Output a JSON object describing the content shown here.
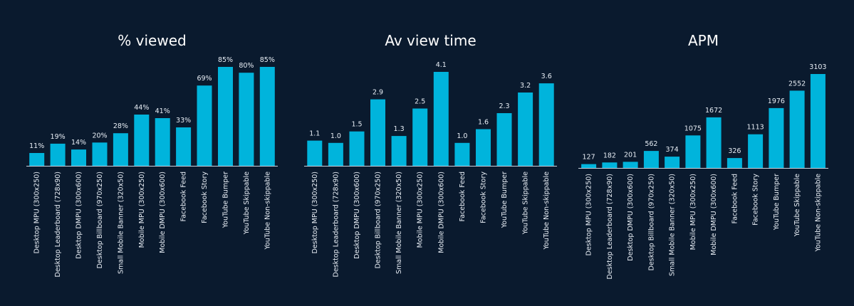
{
  "theme": {
    "background": "#0a1a2e",
    "bar_color": "#00b4dc",
    "axis_color": "#c9d3de",
    "text_color": "#ffffff"
  },
  "chart_data": [
    {
      "type": "bar",
      "title": "% viewed",
      "xlabel": "",
      "ylabel": "",
      "categories": [
        "Desktop MPU (300x250)",
        "Desktop Leaderboard (728x90)",
        "Desktop DMPU (300x600)",
        "Desktop Billboard (970x250)",
        "Small Mobile Banner (320x50)",
        "Mobile MPU (300x250)",
        "Mobile DMPU (300x600)",
        "Facebook Feed",
        "Facebook Story",
        "YouTube Bumper",
        "YouTube Skippable",
        "YouTube Non-skippable"
      ],
      "values": [
        11,
        19,
        14,
        20,
        28,
        44,
        41,
        33,
        69,
        85,
        80,
        85
      ],
      "labels": [
        "11%",
        "19%",
        "14%",
        "20%",
        "28%",
        "44%",
        "41%",
        "33%",
        "69%",
        "85%",
        "80%",
        "85%"
      ],
      "ylim": [
        0,
        85
      ],
      "grid": false
    },
    {
      "type": "bar",
      "title": "Av view time",
      "xlabel": "",
      "ylabel": "",
      "categories": [
        "Desktop MPU (300x250)",
        "Desktop Leaderboard (728x90)",
        "Desktop DMPU (300x600)",
        "Desktop Billboard (970x250)",
        "Small Mobile Banner (320x50)",
        "Mobile MPU (300x250)",
        "Mobile DMPU (300x600)",
        "Facebook Feed",
        "Facebook Story",
        "YouTube Bumper",
        "YouTube Skippable",
        "YouTube Non-skippable"
      ],
      "values": [
        1.1,
        1.0,
        1.5,
        2.9,
        1.3,
        2.5,
        4.1,
        1.0,
        1.6,
        2.3,
        3.2,
        3.6
      ],
      "labels": [
        "1.1",
        "1.0",
        "1.5",
        "2.9",
        "1.3",
        "2.5",
        "4.1",
        "1.0",
        "1.6",
        "2.3",
        "3.2",
        "3.6"
      ],
      "ylim": [
        0,
        4.1
      ],
      "grid": false
    },
    {
      "type": "bar",
      "title": "APM",
      "xlabel": "",
      "ylabel": "",
      "categories": [
        "Desktop MPU (300x250)",
        "Desktop Leaderboard (728x90)",
        "Desktop DMPU (300x600)",
        "Desktop Billboard (970x250)",
        "Small Mobile Banner (320x50)",
        "Mobile MPU (300x250)",
        "Mobile DMPU (300x600)",
        "Facebook Feed",
        "Facebook Story",
        "YouTube Bumper",
        "YouTube Skippable",
        "YouTube Non-skippable"
      ],
      "values": [
        127,
        182,
        201,
        562,
        374,
        1075,
        1672,
        326,
        1113,
        1976,
        2552,
        3103
      ],
      "labels": [
        "127",
        "182",
        "201",
        "562",
        "374",
        "1075",
        "1672",
        "326",
        "1113",
        "1976",
        "2552",
        "3103"
      ],
      "ylim": [
        0,
        3103
      ],
      "grid": false
    }
  ]
}
